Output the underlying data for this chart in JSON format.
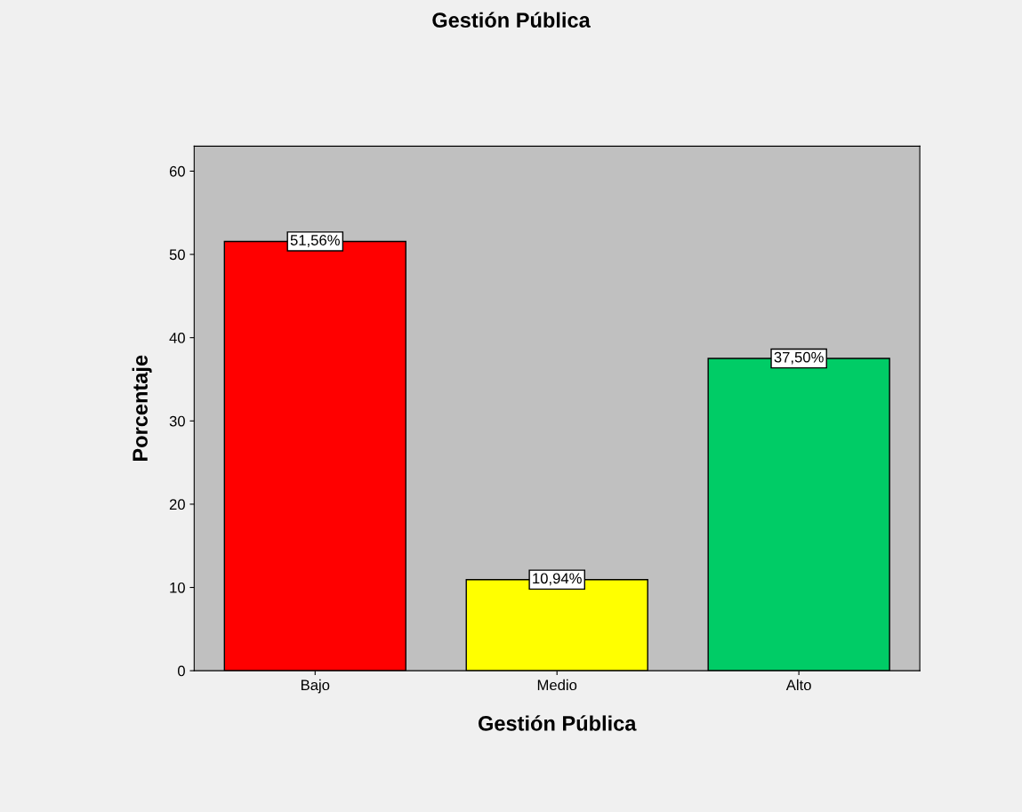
{
  "chart_data": {
    "type": "bar",
    "title": "Gestión Pública",
    "xlabel": "Gestión Pública",
    "ylabel": "Porcentaje",
    "categories": [
      "Bajo",
      "Medio",
      "Alto"
    ],
    "values": [
      51.56,
      10.94,
      37.5
    ],
    "colors": [
      "#ff0000",
      "#ffff00",
      "#00cc66"
    ],
    "value_labels": [
      "51,56%",
      "10,94%",
      "37,50%"
    ],
    "ylim": [
      0,
      63
    ],
    "yticks": [
      0,
      10,
      20,
      30,
      40,
      50,
      60
    ],
    "grid": false,
    "legend": false
  }
}
